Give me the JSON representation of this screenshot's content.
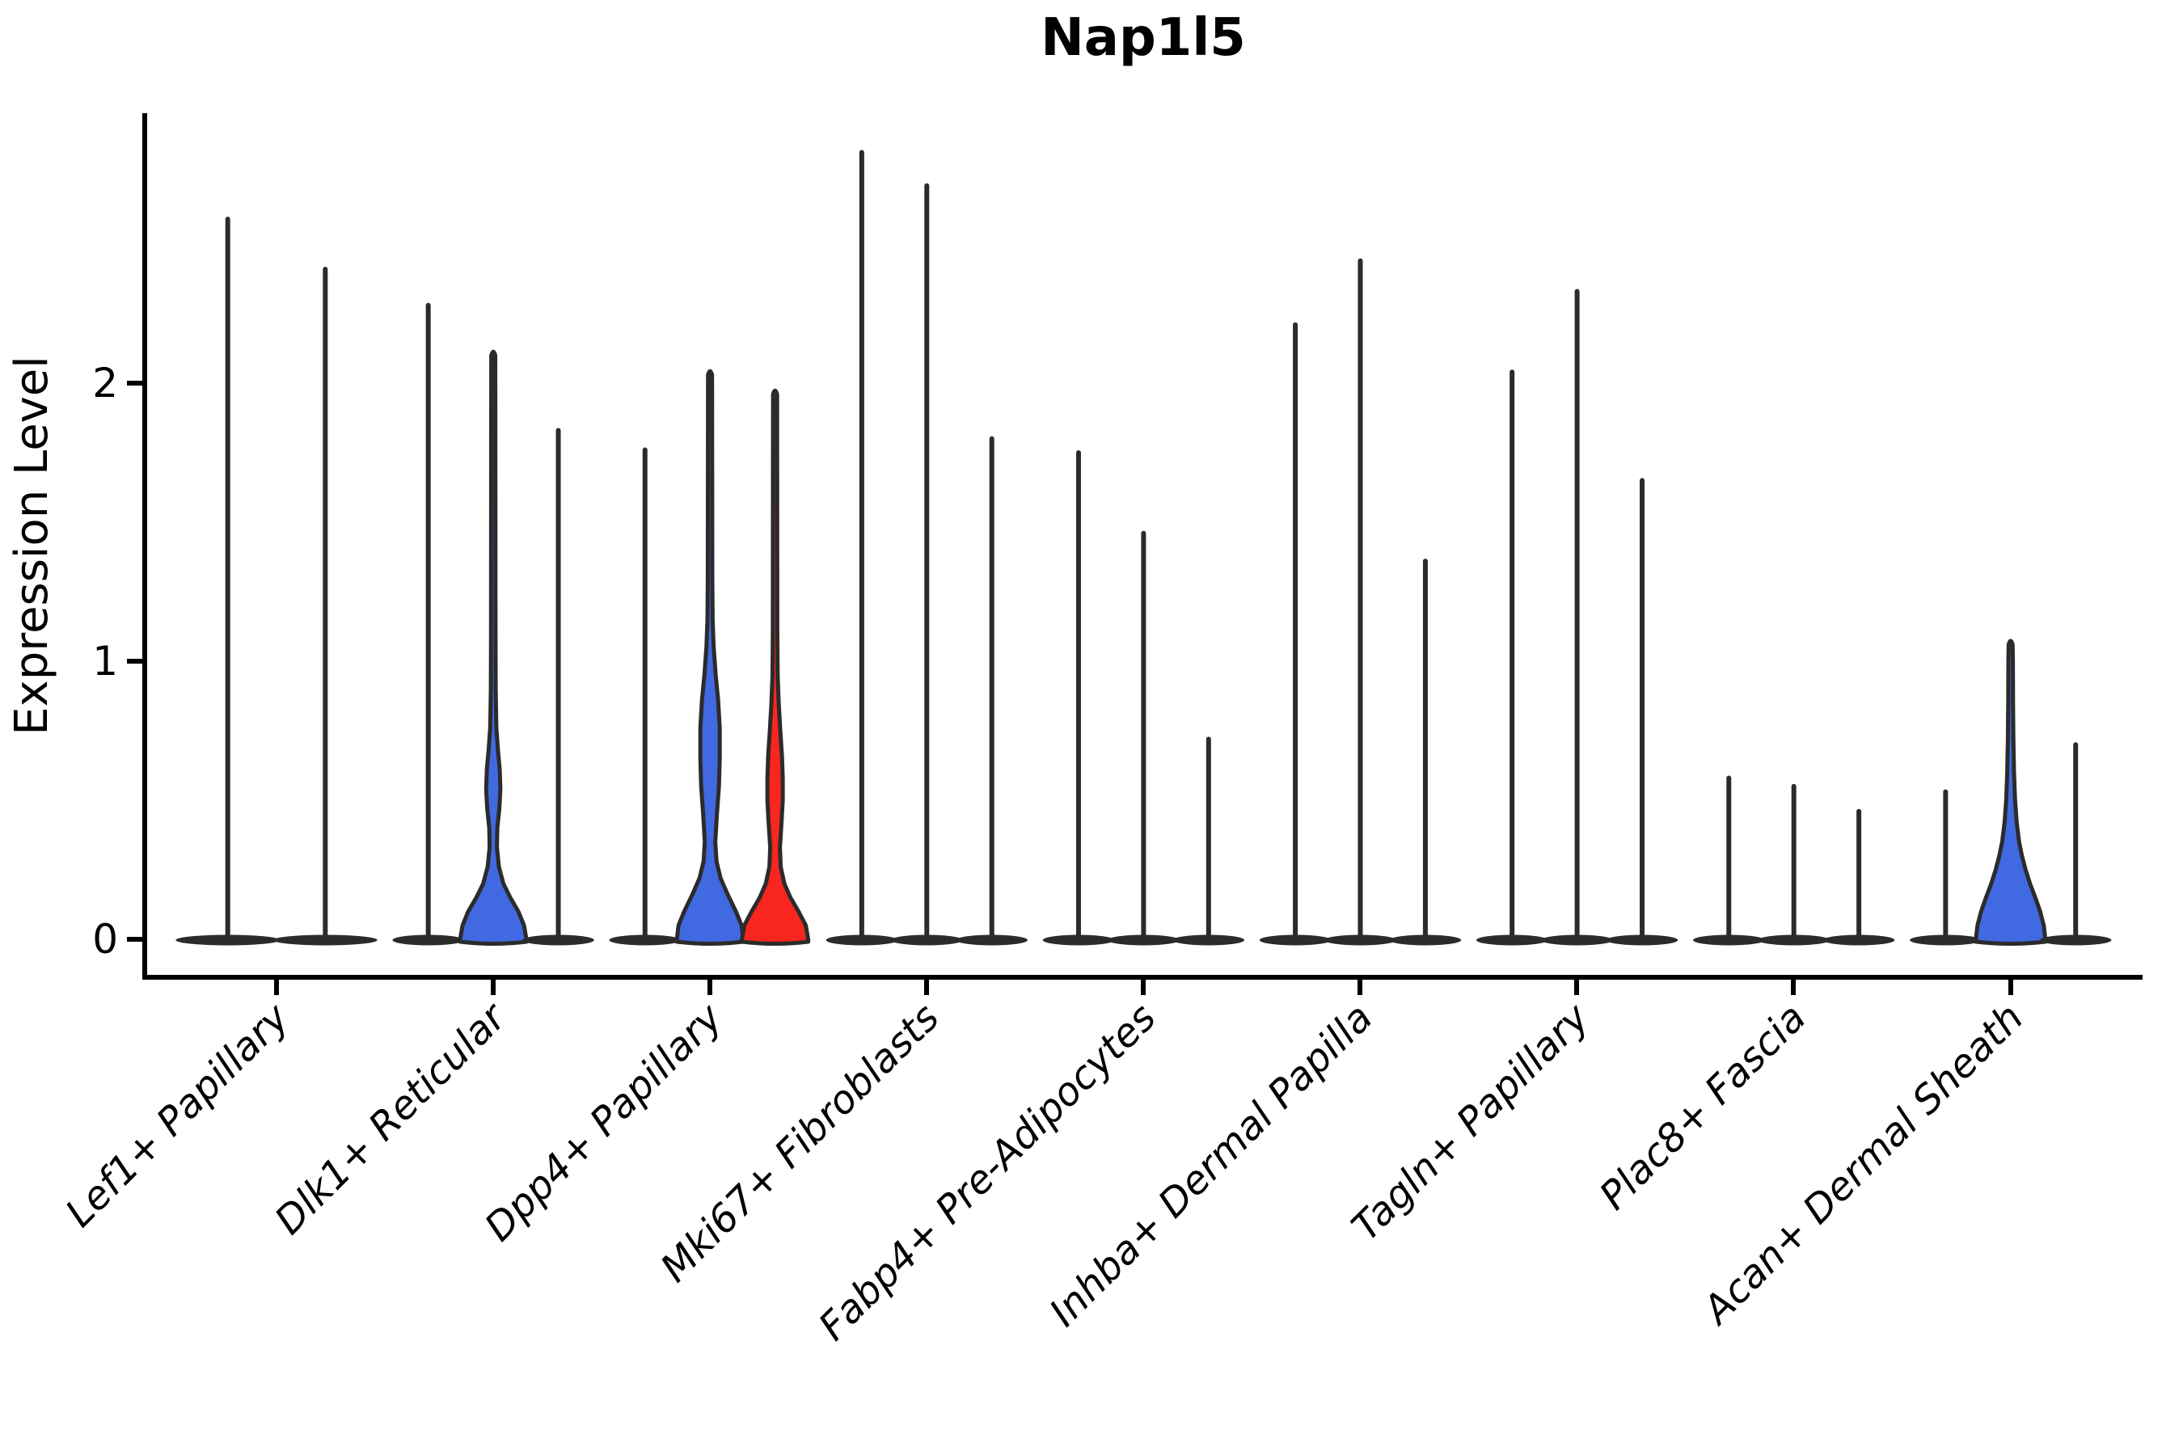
{
  "title": "Nap1l5",
  "ylabel": "Expression Level",
  "colors": {
    "blue": "#4169E1",
    "red": "#F8261E",
    "ink": "#2b2b2b",
    "axis": "#000000",
    "background": "#ffffff"
  },
  "chart_data": {
    "type": "violin",
    "title": "Nap1l5",
    "xlabel": "",
    "ylabel": "Expression Level",
    "ylim": [
      -0.14,
      2.97
    ],
    "yticks": [
      0,
      1,
      2
    ],
    "ytick_labels": [
      "0",
      "1",
      "2"
    ],
    "grid": "off",
    "legend": "none",
    "note": "Grouped/split violin plot; most violins collapse to a thin stem with a flat base at 0; stem top = maximum expression value per violin; filled violins show visible density bulges.",
    "categories": [
      "Lef1+ Papillary",
      "Dlk1+ Reticular",
      "Dpp4+ Papillary",
      "Mki67+ Fibroblasts",
      "Fabp4+ Pre-Adipocytes",
      "Inhba+ Dermal Papilla",
      "Tagln+ Papillary",
      "Plac8+ Fascia",
      "Acan+ Dermal Sheath"
    ],
    "groups": [
      {
        "category": "Lef1+ Papillary",
        "violins": [
          {
            "offset": -0.225,
            "width": 0.45,
            "max": 2.59,
            "fill": "none"
          },
          {
            "offset": 0.225,
            "width": 0.45,
            "max": 2.41,
            "fill": "none"
          }
        ]
      },
      {
        "category": "Dlk1+ Reticular",
        "violins": [
          {
            "offset": -0.3,
            "width": 0.3,
            "max": 2.28,
            "fill": "none"
          },
          {
            "offset": 0,
            "width": 0.3,
            "max": 2.1,
            "fill": "blue",
            "profile": [
              [
                0,
                41
              ],
              [
                0.05,
                38
              ],
              [
                0.1,
                31
              ],
              [
                0.15,
                21
              ],
              [
                0.2,
                12.5
              ],
              [
                0.26,
                7
              ],
              [
                0.33,
                4.5
              ],
              [
                0.4,
                5
              ],
              [
                0.47,
                7.5
              ],
              [
                0.54,
                8.8
              ],
              [
                0.61,
                8
              ],
              [
                0.68,
                5.8
              ],
              [
                0.76,
                3.8
              ],
              [
                0.9,
                3
              ],
              [
                1.1,
                2.8
              ]
            ]
          },
          {
            "offset": 0.3,
            "width": 0.3,
            "max": 1.83,
            "fill": "none"
          }
        ]
      },
      {
        "category": "Dpp4+ Papillary",
        "violins": [
          {
            "offset": -0.3,
            "width": 0.3,
            "max": 1.76,
            "fill": "none"
          },
          {
            "offset": 0,
            "width": 0.3,
            "max": 2.03,
            "fill": "blue",
            "profile": [
              [
                0,
                41
              ],
              [
                0.05,
                39
              ],
              [
                0.1,
                32
              ],
              [
                0.16,
                22
              ],
              [
                0.22,
                13
              ],
              [
                0.28,
                8
              ],
              [
                0.35,
                6.5
              ],
              [
                0.45,
                8.5
              ],
              [
                0.55,
                11
              ],
              [
                0.65,
                12
              ],
              [
                0.76,
                12
              ],
              [
                0.86,
                10
              ],
              [
                0.95,
                7
              ],
              [
                1.05,
                4.5
              ],
              [
                1.15,
                3.2
              ],
              [
                1.3,
                2.8
              ]
            ]
          },
          {
            "offset": 0.3,
            "width": 0.3,
            "max": 1.96,
            "fill": "red",
            "profile": [
              [
                0,
                41
              ],
              [
                0.05,
                38
              ],
              [
                0.1,
                29
              ],
              [
                0.15,
                19
              ],
              [
                0.2,
                11.5
              ],
              [
                0.26,
                7
              ],
              [
                0.33,
                6
              ],
              [
                0.42,
                8
              ],
              [
                0.5,
                9.5
              ],
              [
                0.58,
                9.5
              ],
              [
                0.66,
                8.5
              ],
              [
                0.75,
                6.5
              ],
              [
                0.85,
                4.5
              ],
              [
                0.95,
                3.2
              ],
              [
                1.1,
                2.8
              ]
            ]
          }
        ]
      },
      {
        "category": "Mki67+ Fibroblasts",
        "violins": [
          {
            "offset": -0.3,
            "width": 0.3,
            "max": 2.83,
            "fill": "none"
          },
          {
            "offset": 0,
            "width": 0.3,
            "max": 2.71,
            "fill": "none"
          },
          {
            "offset": 0.3,
            "width": 0.3,
            "max": 1.8,
            "fill": "none"
          }
        ]
      },
      {
        "category": "Fabp4+ Pre-Adipocytes",
        "violins": [
          {
            "offset": -0.3,
            "width": 0.3,
            "max": 1.75,
            "fill": "none"
          },
          {
            "offset": 0,
            "width": 0.3,
            "max": 1.46,
            "fill": "none"
          },
          {
            "offset": 0.3,
            "width": 0.3,
            "max": 0.72,
            "fill": "none"
          }
        ]
      },
      {
        "category": "Inhba+ Dermal Papilla",
        "violins": [
          {
            "offset": -0.3,
            "width": 0.3,
            "max": 2.21,
            "fill": "none"
          },
          {
            "offset": 0,
            "width": 0.3,
            "max": 2.44,
            "fill": "none"
          },
          {
            "offset": 0.3,
            "width": 0.3,
            "max": 1.36,
            "fill": "none"
          }
        ]
      },
      {
        "category": "Tagln+ Papillary",
        "violins": [
          {
            "offset": -0.3,
            "width": 0.3,
            "max": 2.04,
            "fill": "none"
          },
          {
            "offset": 0,
            "width": 0.3,
            "max": 2.33,
            "fill": "none"
          },
          {
            "offset": 0.3,
            "width": 0.3,
            "max": 1.65,
            "fill": "none"
          }
        ]
      },
      {
        "category": "Plac8+ Fascia",
        "violins": [
          {
            "offset": -0.3,
            "width": 0.3,
            "max": 0.58,
            "fill": "none"
          },
          {
            "offset": 0,
            "width": 0.3,
            "max": 0.55,
            "fill": "none"
          },
          {
            "offset": 0.3,
            "width": 0.3,
            "max": 0.46,
            "fill": "none"
          }
        ]
      },
      {
        "category": "Acan+ Dermal Sheath",
        "violins": [
          {
            "offset": -0.3,
            "width": 0.3,
            "max": 0.53,
            "fill": "none"
          },
          {
            "offset": 0,
            "width": 0.3,
            "max": 1.06,
            "fill": "blue",
            "profile": [
              [
                0,
                43
              ],
              [
                0.05,
                41
              ],
              [
                0.1,
                36.5
              ],
              [
                0.15,
                30.5
              ],
              [
                0.2,
                24
              ],
              [
                0.25,
                18.5
              ],
              [
                0.3,
                14
              ],
              [
                0.35,
                10.5
              ],
              [
                0.42,
                7.5
              ],
              [
                0.5,
                5.5
              ],
              [
                0.6,
                4.2
              ],
              [
                0.72,
                3.4
              ],
              [
                0.85,
                3
              ],
              [
                1.0,
                2.8
              ]
            ]
          },
          {
            "offset": 0.3,
            "width": 0.3,
            "max": 0.7,
            "fill": "none"
          }
        ]
      }
    ]
  }
}
